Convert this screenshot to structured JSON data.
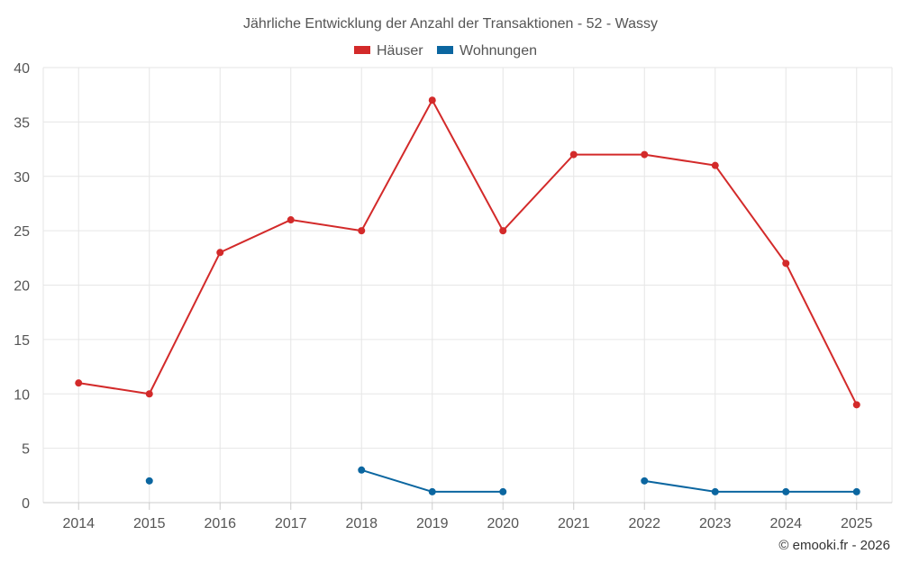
{
  "chart_data": {
    "type": "line",
    "title": "Jährliche Entwicklung der Anzahl der Transaktionen - 52 - Wassy",
    "categories": [
      "2014",
      "2015",
      "2016",
      "2017",
      "2018",
      "2019",
      "2020",
      "2021",
      "2022",
      "2023",
      "2024",
      "2025"
    ],
    "ylim": [
      0,
      40
    ],
    "yticks": [
      0,
      5,
      10,
      15,
      20,
      25,
      30,
      35,
      40
    ],
    "grid": true,
    "legend_position": "top-center",
    "series": [
      {
        "name": "Häuser",
        "color": "#d32a2a",
        "values": [
          11,
          10,
          23,
          26,
          25,
          37,
          25,
          32,
          32,
          31,
          22,
          9
        ]
      },
      {
        "name": "Wohnungen",
        "color": "#0b66a0",
        "values": [
          null,
          2,
          null,
          null,
          3,
          1,
          1,
          null,
          2,
          1,
          1,
          1
        ]
      }
    ]
  },
  "credit": "© emooki.fr - 2026"
}
